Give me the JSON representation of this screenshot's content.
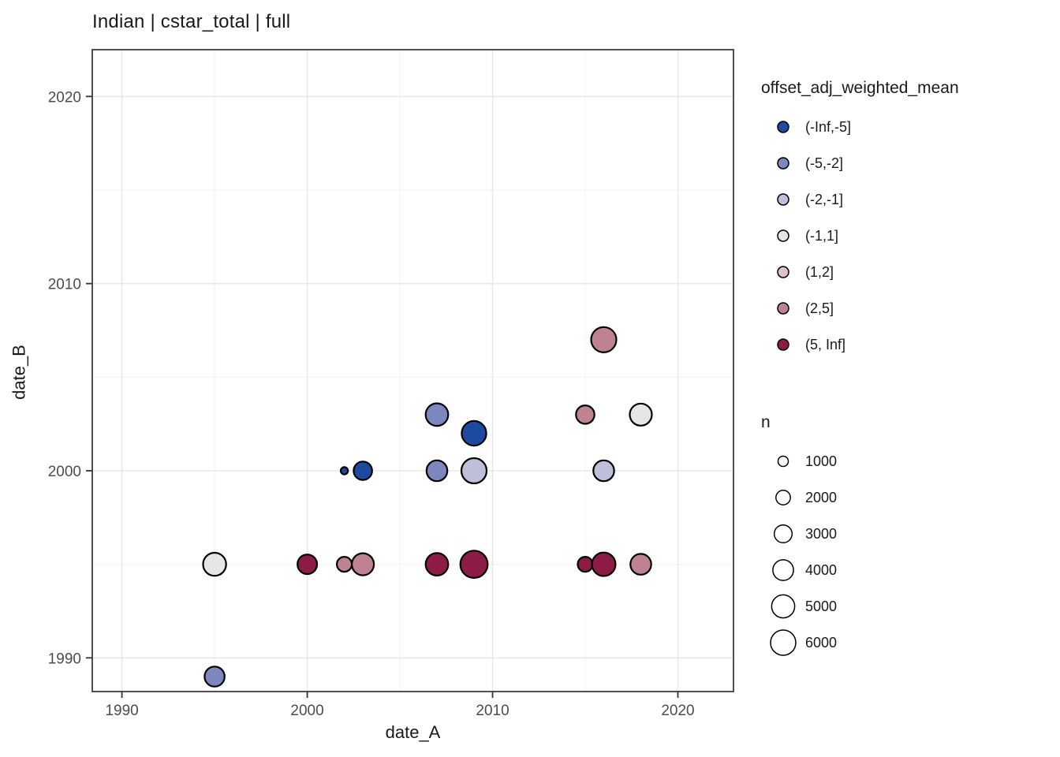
{
  "title": "Indian | cstar_total | full",
  "chart_data": {
    "type": "scatter",
    "title": "Indian | cstar_total | full",
    "xlabel": "date_A",
    "ylabel": "date_B",
    "xlim": [
      1988.4,
      2023.0
    ],
    "ylim": [
      1988.2,
      2022.5
    ],
    "x_major_ticks": [
      1990,
      2000,
      2010,
      2020
    ],
    "x_minor_ticks": [
      1995,
      2005,
      2015
    ],
    "y_major_ticks": [
      1990,
      2000,
      2010,
      2020
    ],
    "y_minor_ticks": [
      1995,
      2005,
      2015
    ],
    "grid": true,
    "legend_position": "right",
    "colors": {
      "panel_border": "#333333",
      "grid_major": "#e8e8e8",
      "grid_minor": "#f0f0f0",
      "tick_label": "#4d4d4d",
      "point_stroke": "#000000"
    },
    "color_legend": {
      "title": "offset_adj_weighted_mean",
      "entries": [
        {
          "label": "(-Inf,-5]",
          "color": "#1d4a9f"
        },
        {
          "label": "(-5,-2]",
          "color": "#7d87bf"
        },
        {
          "label": "(-2,-1]",
          "color": "#bdc0d8"
        },
        {
          "label": "(-1,1]",
          "color": "#e6e6e6"
        },
        {
          "label": "(1,2]",
          "color": "#dcc3ca"
        },
        {
          "label": "(2,5]",
          "color": "#bf8290"
        },
        {
          "label": "(5, Inf]",
          "color": "#8c1c45"
        }
      ]
    },
    "size_legend": {
      "title": "n",
      "entries": [
        1000,
        2000,
        3000,
        4000,
        5000,
        6000
      ],
      "max_n": 6000,
      "max_radius_px": 16
    },
    "points": [
      {
        "x": 1995,
        "y": 1995,
        "bin": "(-1,1]",
        "n": 5000
      },
      {
        "x": 1995,
        "y": 1989,
        "bin": "(-5,-2]",
        "n": 3800
      },
      {
        "x": 2000,
        "y": 1995,
        "bin": "(5, Inf]",
        "n": 3600
      },
      {
        "x": 2002,
        "y": 1995,
        "bin": "(2,5]",
        "n": 2100
      },
      {
        "x": 2003,
        "y": 1995,
        "bin": "(2,5]",
        "n": 4600
      },
      {
        "x": 2002,
        "y": 2000,
        "bin": "(-Inf,-5]",
        "n": 500
      },
      {
        "x": 2003,
        "y": 2000,
        "bin": "(-Inf,-5]",
        "n": 3200
      },
      {
        "x": 2007,
        "y": 2003,
        "bin": "(-5,-2]",
        "n": 4800
      },
      {
        "x": 2007,
        "y": 2000,
        "bin": "(-5,-2]",
        "n": 4100
      },
      {
        "x": 2009,
        "y": 2002,
        "bin": "(-Inf,-5]",
        "n": 5700
      },
      {
        "x": 2009,
        "y": 2000,
        "bin": "(-2,-1]",
        "n": 6000
      },
      {
        "x": 2007,
        "y": 1995,
        "bin": "(5, Inf]",
        "n": 4800
      },
      {
        "x": 2009,
        "y": 1995,
        "bin": "(5, Inf]",
        "n": 7000
      },
      {
        "x": 2015,
        "y": 2003,
        "bin": "(2,5]",
        "n": 3200
      },
      {
        "x": 2016,
        "y": 2007,
        "bin": "(2,5]",
        "n": 6000
      },
      {
        "x": 2016,
        "y": 2000,
        "bin": "(-2,-1]",
        "n": 4100
      },
      {
        "x": 2018,
        "y": 2003,
        "bin": "(-1,1]",
        "n": 4600
      },
      {
        "x": 2015,
        "y": 1995,
        "bin": "(5, Inf]",
        "n": 2100
      },
      {
        "x": 2016,
        "y": 1995,
        "bin": "(5, Inf]",
        "n": 5200
      },
      {
        "x": 2018,
        "y": 1995,
        "bin": "(2,5]",
        "n": 4100
      }
    ]
  }
}
